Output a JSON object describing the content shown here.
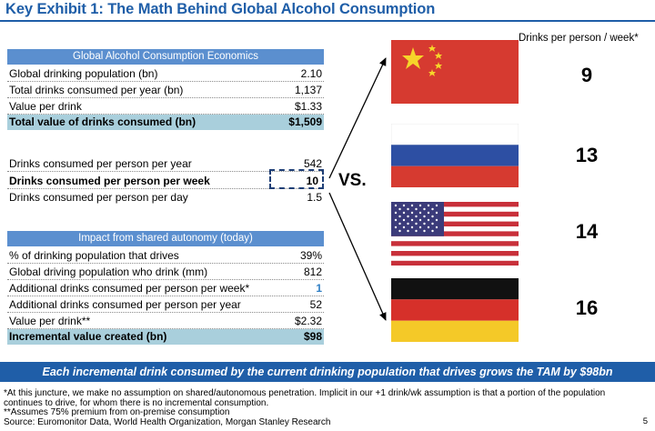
{
  "title": "Key Exhibit 1: The Math Behind Global Alcohol Consumption",
  "economics": {
    "header": "Global Alcohol Consumption Economics",
    "rows": [
      {
        "label": "Global drinking population (bn)",
        "value": "2.10"
      },
      {
        "label": "Total drinks consumed per year (bn)",
        "value": "1,137"
      },
      {
        "label": "Value per drink",
        "value": "$1.33"
      },
      {
        "label": "Total value of drinks consumed (bn)",
        "value": "$1,509"
      }
    ]
  },
  "per_person": {
    "rows": [
      {
        "label": "Drinks consumed per person per year",
        "value": "542"
      },
      {
        "label": "Drinks consumed per person per week",
        "value": "10"
      },
      {
        "label": "Drinks consumed per person per day",
        "value": "1.5"
      }
    ]
  },
  "vs_label": "VS.",
  "impact": {
    "header": "Impact from shared autonomy (today)",
    "rows": [
      {
        "label": "% of drinking population that drives",
        "value": "39%"
      },
      {
        "label": "Global driving population who drink (mm)",
        "value": "812"
      },
      {
        "label": "Additional drinks consumed per person per week*",
        "value": "1"
      },
      {
        "label": "Additional drinks consumed per person per year",
        "value": "52"
      },
      {
        "label": "Value per drink**",
        "value": "$2.32"
      },
      {
        "label": "Incremental value created (bn)",
        "value": "$98"
      }
    ]
  },
  "comparison": {
    "header": "Drinks per person / week*",
    "countries": [
      {
        "flag": "china-flag",
        "value": "9"
      },
      {
        "flag": "russia-flag",
        "value": "13"
      },
      {
        "flag": "usa-flag",
        "value": "14"
      },
      {
        "flag": "germany-flag",
        "value": "16"
      }
    ]
  },
  "banner": "Each incremental drink consumed by the current drinking population that drives grows the TAM by $98bn",
  "footnotes": {
    "line1": "*At this juncture, we make no assumption on shared/autonomous penetration. Implicit in our +1 drink/wk assumption is that a portion of the population",
    "line2": "continues to drive, for whom there is no incremental consumption.",
    "line3": "**Assumes 75% premium from on-premise consumption",
    "line4": "Source: Euromonitor Data, World Health Organization, Morgan Stanley Research"
  },
  "page_number": "5",
  "colors": {
    "title_blue": "#1f5ea8",
    "header_blue": "#5b8fcf",
    "total_shade": "#a9cfdc",
    "highlight_blue": "#2f7ec4"
  }
}
